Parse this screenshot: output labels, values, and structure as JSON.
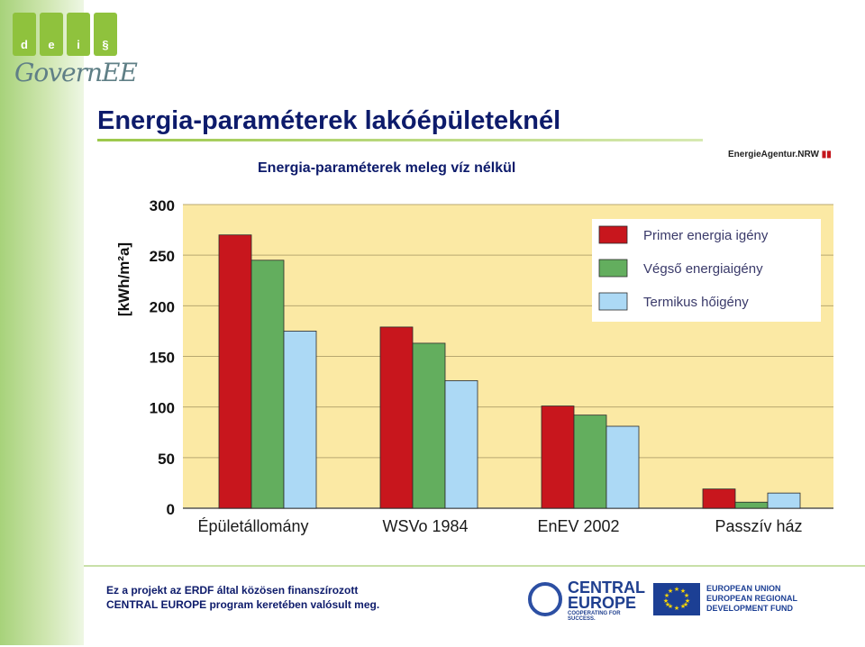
{
  "header": {
    "logo_letters": [
      "d",
      "e",
      "i",
      "§"
    ],
    "logo_text": "GovernEE",
    "title": "Energia-paraméterek lakóépületeknél",
    "partner_logo": "EnergieAgentur.NRW"
  },
  "chart_data": {
    "type": "bar",
    "title": "Energia-paraméterek meleg víz nélkül",
    "ylabel": "[kWh/m²a]",
    "xlabel": "",
    "ylim": [
      0,
      300
    ],
    "yticks": [
      "0",
      "50",
      "100",
      "150",
      "200",
      "250",
      "300"
    ],
    "categories": [
      "Épületállomány",
      "WSVo 1984",
      "EnEV 2002",
      "Passzív ház"
    ],
    "series": [
      {
        "name": "Primer energia igény",
        "color": "#c8161d",
        "values": [
          270,
          179,
          101,
          19
        ]
      },
      {
        "name": "Végső energiaigény",
        "color": "#63ae5e",
        "values": [
          245,
          163,
          92,
          6
        ]
      },
      {
        "name": "Termikus hőigény",
        "color": "#acd9f5",
        "values": [
          175,
          126,
          81,
          15
        ]
      }
    ],
    "plot_background": "#fbe9a4",
    "grid": "horizontal",
    "legend_position": "top-right"
  },
  "footer": {
    "line1": "Ez a projekt az ERDF által közösen finanszírozott",
    "line2": "CENTRAL EUROPE  program keretében valósult meg.",
    "central_europe_line1": "CENTRAL",
    "central_europe_line2": "EUROPE",
    "central_europe_tagline": "COOPERATING FOR SUCCESS.",
    "eu_line1": "EUROPEAN UNION",
    "eu_line2": "EUROPEAN REGIONAL",
    "eu_line3": "DEVELOPMENT FUND"
  }
}
